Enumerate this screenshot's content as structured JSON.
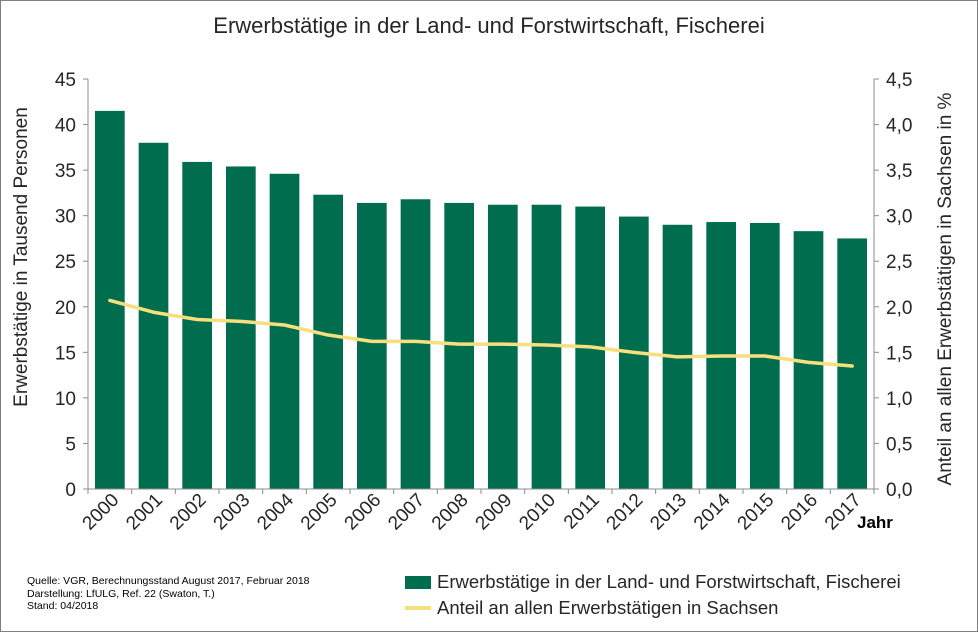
{
  "chart_data": {
    "type": "bar",
    "title": "Erwerbstätige in der Land- und Forstwirtschaft, Fischerei",
    "xlabel": "Jahr",
    "ylabel_left": "Erwerbstätige in Tausend Personen",
    "ylabel_right": "Anteil an allen Erwerbstätigen in Sachsen in %",
    "ylim_left": [
      0,
      45
    ],
    "ylim_right": [
      0,
      4.5
    ],
    "yticks_left": [
      "0",
      "5",
      "10",
      "15",
      "20",
      "25",
      "30",
      "35",
      "40",
      "45"
    ],
    "yticks_right": [
      "0,0",
      "0,5",
      "1,0",
      "1,5",
      "2,0",
      "2,5",
      "3,0",
      "3,5",
      "4,0",
      "4,5"
    ],
    "categories": [
      "2000",
      "2001",
      "2002",
      "2003",
      "2004",
      "2005",
      "2006",
      "2007",
      "2008",
      "2009",
      "2010",
      "2011",
      "2012",
      "2013",
      "2014",
      "2015",
      "2016",
      "2017"
    ],
    "series": [
      {
        "name": "Erwerbstätige in der Land- und Forstwirtschaft, Fischerei",
        "type": "bar",
        "axis": "left",
        "color": "#006e4e",
        "values": [
          41.5,
          38.0,
          35.9,
          35.4,
          34.6,
          32.3,
          31.4,
          31.8,
          31.4,
          31.2,
          31.2,
          31.0,
          29.9,
          29.0,
          29.3,
          29.2,
          28.3,
          27.5
        ]
      },
      {
        "name": "Anteil an allen Erwerbstätigen in Sachsen",
        "type": "line",
        "axis": "right",
        "color": "#f7df7d",
        "values": [
          2.07,
          1.94,
          1.86,
          1.84,
          1.8,
          1.69,
          1.62,
          1.62,
          1.59,
          1.59,
          1.58,
          1.56,
          1.5,
          1.45,
          1.46,
          1.46,
          1.39,
          1.35
        ]
      }
    ],
    "grid": false,
    "legend_position": "bottom-right"
  },
  "source_lines": [
    "Quelle: VGR, Berechnungsstand August 2017, Februar 2018",
    "Darstellung: LfULG, Ref. 22 (Swaton, T.)",
    "Stand: 04/2018"
  ]
}
